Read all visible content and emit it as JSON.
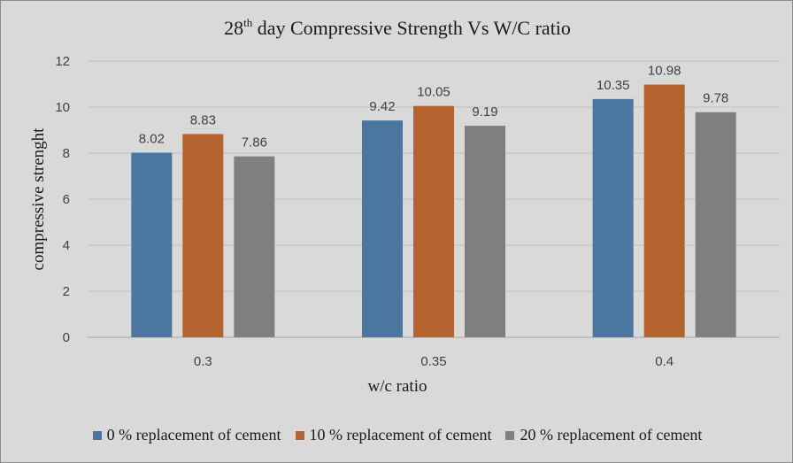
{
  "chart_data": {
    "type": "bar",
    "title_main": "28",
    "title_sup": "th",
    "title_rest": " day Compressive Strength Vs W/C ratio",
    "categories": [
      "0.3",
      "0.35",
      "0.4"
    ],
    "series": [
      {
        "name": "0 % replacement of cement",
        "color": "#4a76a0",
        "values": [
          8.02,
          9.42,
          10.35
        ],
        "labels": [
          "8.02",
          "9.42",
          "10.35"
        ]
      },
      {
        "name": "10 % replacement of cement",
        "color": "#b5632e",
        "values": [
          8.83,
          10.05,
          10.98
        ],
        "labels": [
          "8.83",
          "10.05",
          "10.98"
        ]
      },
      {
        "name": "20 % replacement of cement",
        "color": "#7f7f7f",
        "values": [
          7.86,
          9.19,
          9.78
        ],
        "labels": [
          "7.86",
          "9.19",
          "9.78"
        ]
      }
    ],
    "xlabel": "w/c ratio",
    "ylabel": "compressive strenght",
    "ylim": [
      0,
      12
    ],
    "yticks": [
      "0",
      "2",
      "4",
      "6",
      "8",
      "10",
      "12"
    ],
    "grid": true,
    "legend_position": "bottom"
  }
}
